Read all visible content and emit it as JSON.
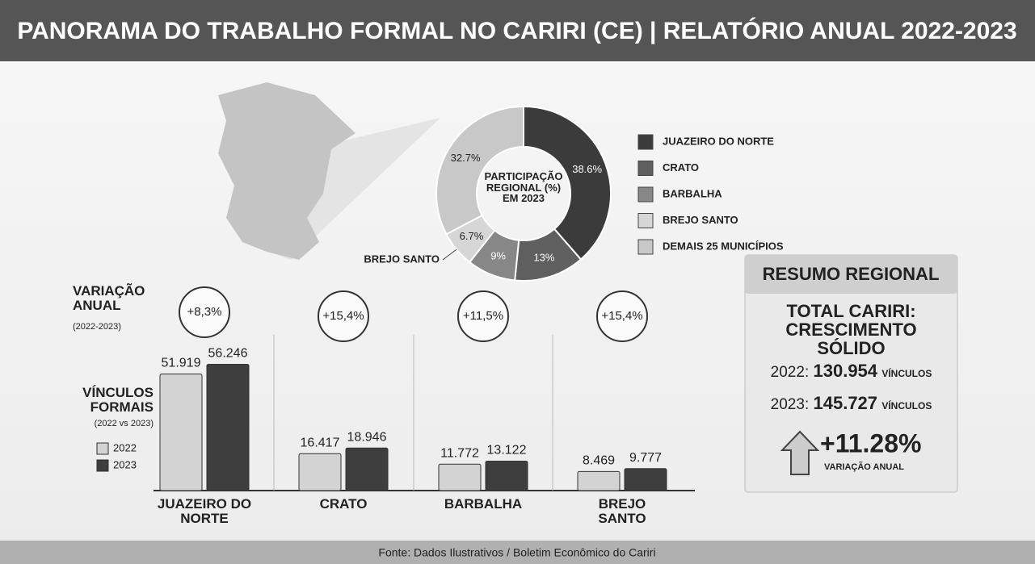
{
  "title": "PANORAMA DO TRABALHO FORMAL NO CARIRI (CE) | RELATÓRIO ANUAL 2022-2023",
  "chart_data": [
    {
      "type": "donut",
      "title": "PARTICIPAÇÃO REGIONAL (%) EM 2023",
      "categories": [
        "JUAZEIRO DO NORTE",
        "CRATO",
        "BARBALHA",
        "BREJO SANTO",
        "DEMAIS 25 MUNICÍPIOS"
      ],
      "values": [
        38.6,
        13,
        9,
        6.7,
        32.7
      ],
      "value_labels": [
        "38.6%",
        "13%",
        "9%",
        "6.7%",
        "32.7%"
      ],
      "colors": [
        "#3b3b3b",
        "#5f5f5f",
        "#878787",
        "#d6d6d6",
        "#c8c8c8"
      ]
    },
    {
      "type": "bar",
      "categories": [
        "JUAZEIRO DO NORTE",
        "CRATO",
        "BARBALHA",
        "BREJO SANTO"
      ],
      "series": [
        {
          "name": "2022",
          "color": "#d3d3d3",
          "values": [
            51919,
            16417,
            11772,
            8469
          ],
          "value_labels": [
            "51.919",
            "16.417",
            "11.772",
            "8.469"
          ]
        },
        {
          "name": "2023",
          "color": "#3e3e3e",
          "values": [
            56246,
            18946,
            13122,
            9777
          ],
          "value_labels": [
            "56.246",
            "18.946",
            "13.122",
            "9.777"
          ]
        }
      ],
      "ylim": [
        0,
        60000
      ],
      "change_title": "VARIAÇÃO ANUAL",
      "change_period": "(2022-2023)",
      "change_labels": [
        "+8,3%",
        "+15,4%",
        "+11,5%",
        "+15,4%"
      ],
      "value_title": "VÍNCULOS FORMAIS",
      "value_period": "(2022 vs 2023)"
    }
  ],
  "summary": {
    "title": "RESUMO REGIONAL",
    "headline": "TOTAL CARIRI: CRESCIMENTO SÓLIDO",
    "rows": [
      {
        "year": "2022:",
        "value": "130.954",
        "unit": "VÍNCULOS"
      },
      {
        "year": "2023:",
        "value": "145.727",
        "unit": "VÍNCULOS"
      }
    ],
    "change": "+11.28%",
    "change_label": "VARIAÇÃO ANUAL"
  },
  "footer": "Fonte: Dados Ilustrativos / Boletim Econômico do Cariri"
}
